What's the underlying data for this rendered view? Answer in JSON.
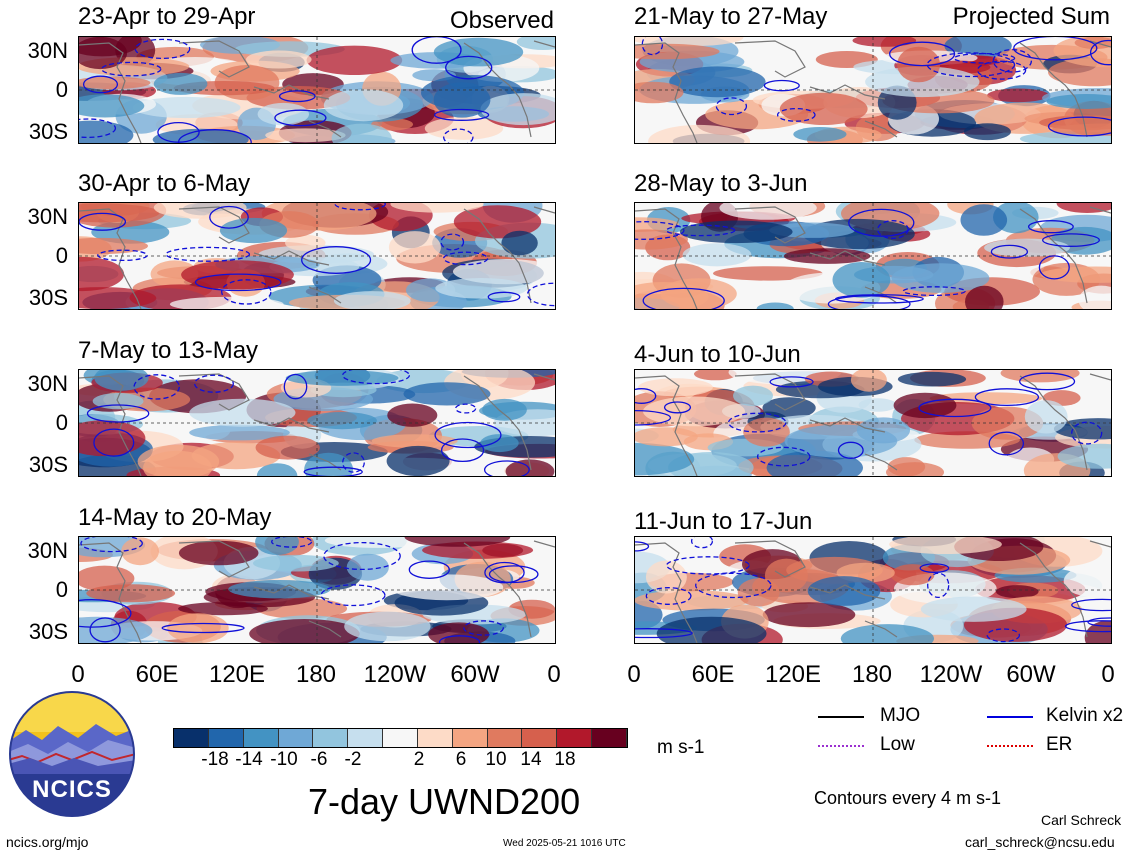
{
  "panel_tag_left": "Observed",
  "panel_tag_right": "Projected Sum",
  "panels_left": [
    {
      "title": "23-Apr to 29-Apr"
    },
    {
      "title": "30-Apr to 6-May"
    },
    {
      "title": "7-May to 13-May"
    },
    {
      "title": "14-May to 20-May"
    }
  ],
  "panels_right": [
    {
      "title": "21-May to 27-May"
    },
    {
      "title": "28-May to 3-Jun"
    },
    {
      "title": "4-Jun to 10-Jun"
    },
    {
      "title": "11-Jun to 17-Jun"
    }
  ],
  "lat_labels": [
    "30N",
    "0",
    "30S"
  ],
  "lon_labels": [
    "0",
    "60E",
    "120E",
    "180",
    "120W",
    "60W",
    "0"
  ],
  "colorbar": {
    "ticks": [
      "-18",
      "-14",
      "-10",
      "-6",
      "-2",
      "2",
      "6",
      "10",
      "14",
      "18"
    ],
    "colors": [
      "#08306b",
      "#2166ac",
      "#4393c3",
      "#6fa8d6",
      "#92c5de",
      "#c6dfee",
      "#f7f7f7",
      "#fddbc7",
      "#f4a582",
      "#e07a5f",
      "#d6604d",
      "#b2182b",
      "#67001f"
    ],
    "units": "m s-1"
  },
  "legend": {
    "mjo": "MJO",
    "kelvin": "Kelvin x2",
    "low": "Low",
    "er": "ER",
    "mjo_color": "#000000",
    "kelvin_color": "#0000dd",
    "low_color": "#9b30d0",
    "er_color": "#dd0000"
  },
  "logo_text": "NCICS",
  "main_title": "7-day UWND200",
  "contour_note": "Contours every 4 m s-1",
  "author": "Carl Schreck",
  "email": "carl_schreck@ncsu.edu",
  "site": "ncics.org/mjo",
  "timestamp": "Wed 2025-05-21 1016 UTC"
}
